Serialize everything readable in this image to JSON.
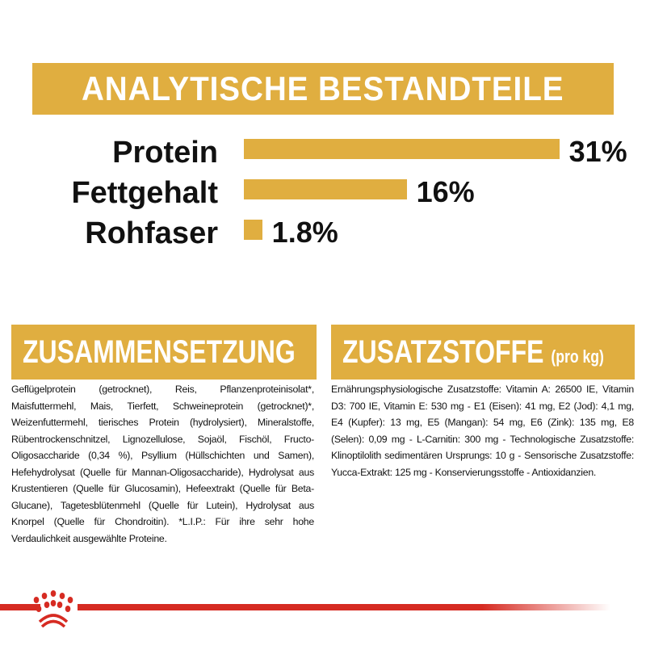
{
  "colors": {
    "gold": "#e0ae40",
    "red": "#d62b22"
  },
  "analysis": {
    "title": "ANALYTISCHE BESTANDTEILE",
    "items": [
      {
        "label": "Protein",
        "value_text": "31%",
        "value": 31
      },
      {
        "label": "Fettgehalt",
        "value_text": "16%",
        "value": 16
      },
      {
        "label": "Rohfaser",
        "value_text": "1.8%",
        "value": 1.8
      }
    ]
  },
  "composition": {
    "title": "ZUSAMMENSETZUNG",
    "text": "Geflügelprotein (getrocknet), Reis, Pflanzenproteinisolat*, Maisfuttermehl, Mais, Tierfett, Schweineprotein (getrocknet)*, Weizenfuttermehl, tierisches Protein (hydrolysiert), Mineralstoffe, Rübentrockenschnitzel, Lignozellulose, Sojaöl, Fischöl, Fructo-Oligosaccharide (0,34 %), Psyllium (Hüllschichten und Samen), Hefehydrolysat (Quelle für Mannan-Oligosaccharide), Hydrolysat aus Krustentieren (Quelle für Glucosamin), Hefeextrakt (Quelle für Beta-Glucane), Tagetesblütenmehl (Quelle für Lutein), Hydrolysat aus Knorpel (Quelle für Chondroitin). *L.I.P.: Für ihre sehr hohe Verdaulichkeit ausgewählte Proteine."
  },
  "additives": {
    "title": "ZUSATZSTOFFE",
    "title_suffix": "(pro kg)",
    "text": "Ernährungsphysiologische Zusatzstoffe: Vitamin A: 26500 IE, Vitamin D3: 700 IE, Vitamin E: 530 mg - E1 (Eisen): 41 mg, E2 (Jod): 4,1 mg, E4 (Kupfer): 13 mg, E5 (Mangan): 54 mg, E6 (Zink): 135 mg, E8 (Selen): 0,09 mg - L-Carnitin: 300 mg - Technologische Zusatzstoffe: Klinoptilolith sedimentären Ursprungs: 10 g - Sensorische Zusatzstoffe: Yucca-Extrakt: 125 mg - Konservierungsstoffe - Antioxidanzien."
  },
  "footer": {
    "logo_icon": "royal-canin-crown-icon"
  }
}
